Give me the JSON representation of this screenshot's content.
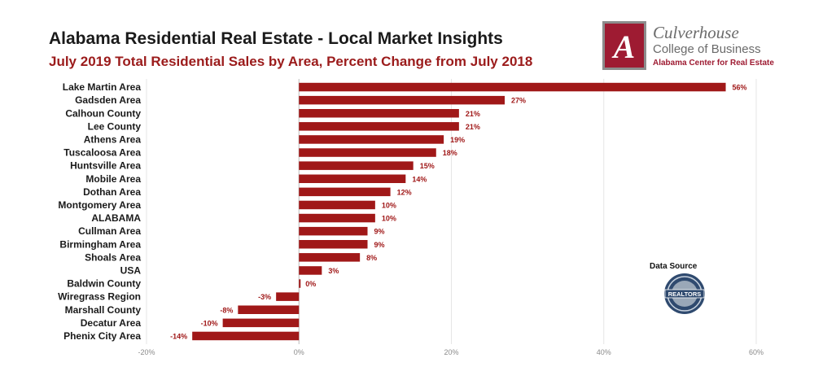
{
  "header": {
    "title": "Alabama Residential Real Estate - Local Market Insights",
    "subtitle": "July 2019 Total Residential Sales by Area, Percent Change from July 2018"
  },
  "logo": {
    "name": "Culverhouse",
    "college": "College of Business",
    "center": "Alabama Center for Real Estate",
    "mark_letter": "A",
    "mark_color": "#9e1b32"
  },
  "source": {
    "label": "Data Source",
    "seal_text": "REALTORS",
    "seal_icon": "realtors-seal-icon"
  },
  "chart_data": {
    "type": "bar",
    "orientation": "horizontal",
    "categories": [
      "Lake Martin Area",
      "Gadsden Area",
      "Calhoun County",
      "Lee County",
      "Athens Area",
      "Tuscaloosa Area",
      "Huntsville Area",
      "Mobile Area",
      "Dothan Area",
      "Montgomery Area",
      "ALABAMA",
      "Cullman Area",
      "Birmingham Area",
      "Shoals Area",
      "USA",
      "Baldwin County",
      "Wiregrass Region",
      "Marshall County",
      "Decatur Area",
      "Phenix City Area"
    ],
    "values": [
      56,
      27,
      21,
      21,
      19,
      18,
      15,
      14,
      12,
      10,
      10,
      9,
      9,
      8,
      3,
      0,
      -3,
      -8,
      -10,
      -14
    ],
    "labels": [
      "56%",
      "27%",
      "21%",
      "21%",
      "19%",
      "18%",
      "15%",
      "14%",
      "12%",
      "10%",
      "10%",
      "9%",
      "9%",
      "8%",
      "3%",
      "0%",
      "-3%",
      "-8%",
      "-10%",
      "-14%"
    ],
    "xlim": [
      -20,
      60
    ],
    "ticks": [
      -20,
      0,
      20,
      40,
      60
    ],
    "tick_labels": [
      "-20%",
      "0%",
      "20%",
      "40%",
      "60%"
    ],
    "grid": true,
    "bar_color": "#a01818",
    "label_color": "#a01818"
  }
}
